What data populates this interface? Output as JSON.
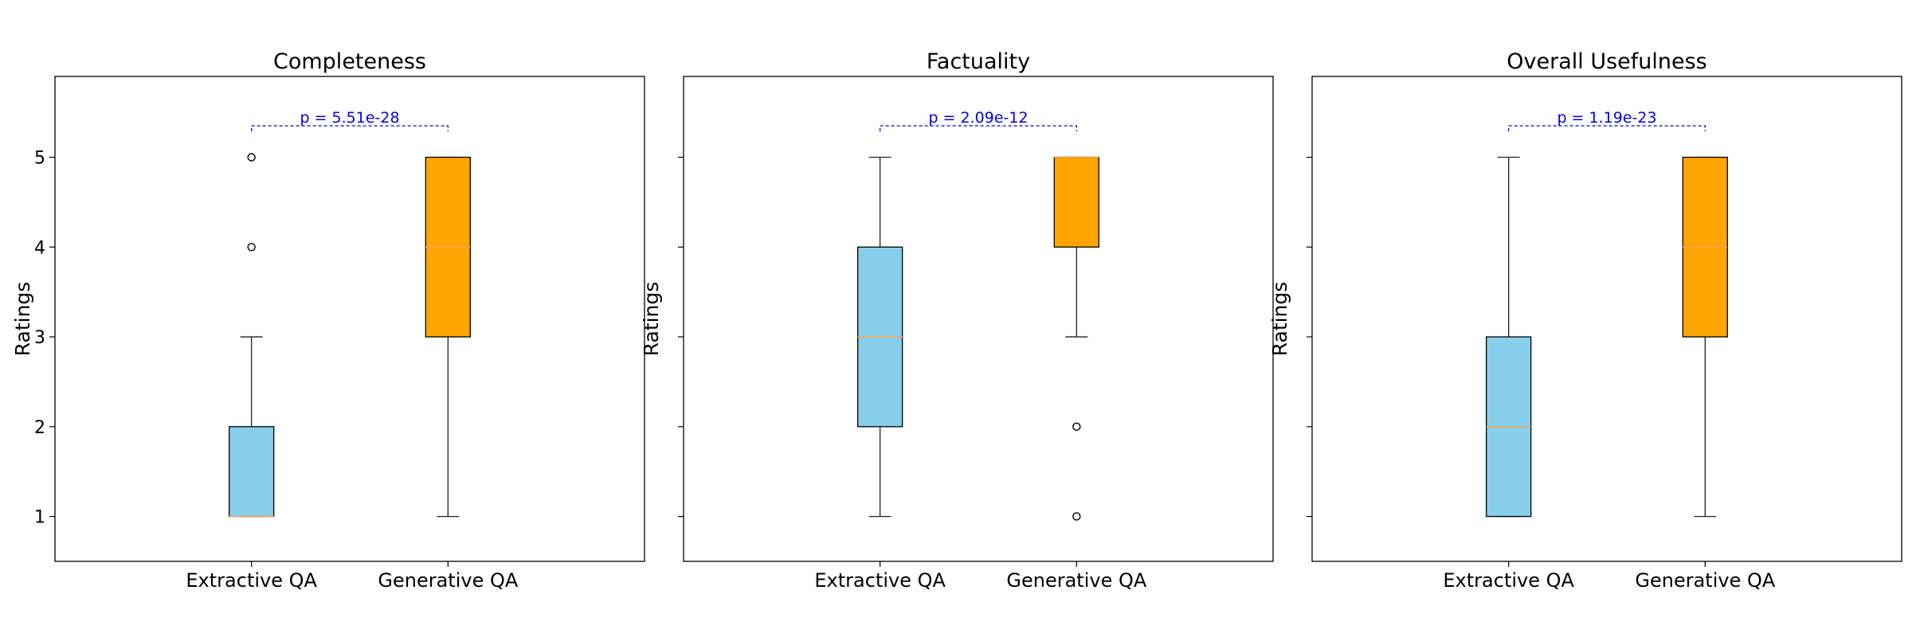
{
  "chart_data": [
    {
      "type": "box",
      "title": "Completeness",
      "xlabel": "",
      "ylabel": "Ratings",
      "categories": [
        "Extractive QA",
        "Generative QA"
      ],
      "ylim": [
        0.5,
        5.9
      ],
      "yticks": [
        1,
        2,
        3,
        4,
        5
      ],
      "yticklabels": [
        "1",
        "2",
        "3",
        "4",
        "5"
      ],
      "boxes": [
        {
          "name": "Extractive QA",
          "color": "#87CEEB",
          "whisker_low": 1,
          "q1": 1,
          "median": 1,
          "q3": 2,
          "whisker_high": 3,
          "outliers": [
            4,
            5
          ]
        },
        {
          "name": "Generative QA",
          "color": "#FFA500",
          "whisker_low": 1,
          "q1": 3,
          "median": 4,
          "q3": 5,
          "whisker_high": 5,
          "outliers": []
        }
      ],
      "p_value_label": "p = 5.51e-28",
      "p_bracket_y": 5.35
    },
    {
      "type": "box",
      "title": "Factuality",
      "xlabel": "",
      "ylabel": "Ratings",
      "categories": [
        "Extractive QA",
        "Generative QA"
      ],
      "ylim": [
        0.5,
        5.9
      ],
      "yticks": [
        1,
        2,
        3,
        4,
        5
      ],
      "yticklabels": [],
      "boxes": [
        {
          "name": "Extractive QA",
          "color": "#87CEEB",
          "whisker_low": 1,
          "q1": 2,
          "median": 3,
          "q3": 4,
          "whisker_high": 5,
          "outliers": []
        },
        {
          "name": "Generative QA",
          "color": "#FFA500",
          "whisker_low": 3,
          "q1": 4,
          "median": 5,
          "q3": 5,
          "whisker_high": 5,
          "outliers": [
            2,
            1
          ]
        }
      ],
      "p_value_label": "p = 2.09e-12",
      "p_bracket_y": 5.35
    },
    {
      "type": "box",
      "title": "Overall Usefulness",
      "xlabel": "",
      "ylabel": "Ratings",
      "categories": [
        "Extractive QA",
        "Generative QA"
      ],
      "ylim": [
        0.5,
        5.9
      ],
      "yticks": [
        1,
        2,
        3,
        4,
        5
      ],
      "yticklabels": [],
      "boxes": [
        {
          "name": "Extractive QA",
          "color": "#87CEEB",
          "whisker_low": 1,
          "q1": 1,
          "median": 2,
          "q3": 3,
          "whisker_high": 5,
          "outliers": []
        },
        {
          "name": "Generative QA",
          "color": "#FFA500",
          "whisker_low": 1,
          "q1": 3,
          "median": 4,
          "q3": 5,
          "whisker_high": 5,
          "outliers": []
        }
      ],
      "p_value_label": "p = 1.19e-23",
      "p_bracket_y": 5.35
    }
  ],
  "style": {
    "median_color": "#F5A45A",
    "annotation_color": "#0000EE",
    "axis_color": "#000000",
    "whisker_color": "#222222"
  }
}
